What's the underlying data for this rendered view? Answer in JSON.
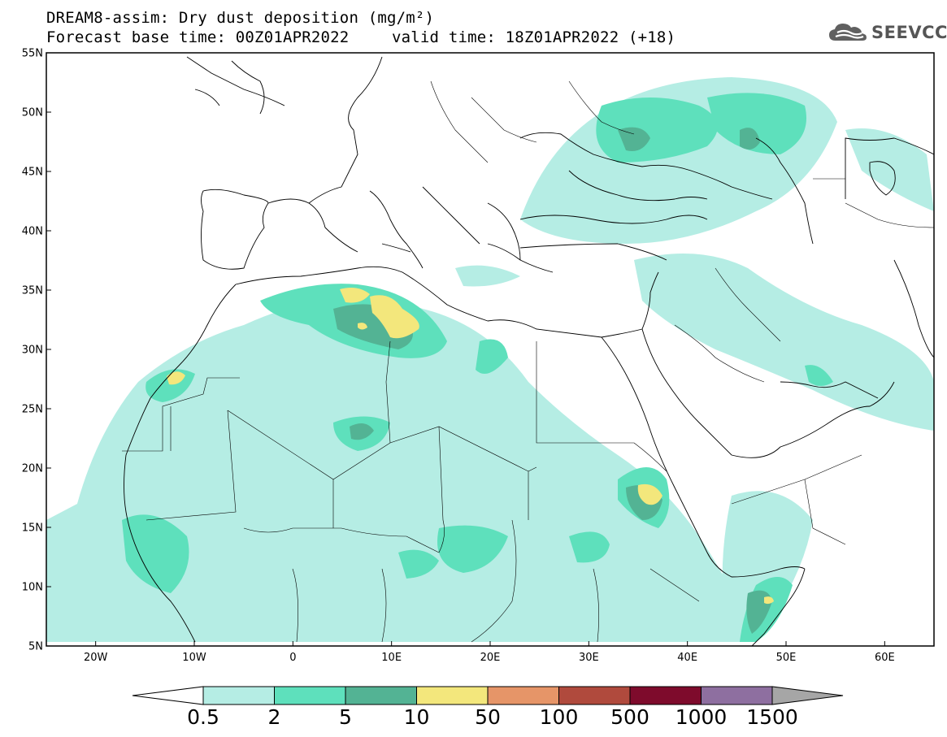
{
  "title": {
    "line1": "DREAM8-assim: Dry dust deposition (mg/m²)",
    "line2": "Forecast base time: 00Z01APR2022",
    "line3": "valid time: 18Z01APR2022 (+18)"
  },
  "logo": {
    "text": "SEEVCCC",
    "icon": "cloud-logo-icon"
  },
  "map": {
    "lon_range": [
      -25,
      65
    ],
    "lat_range": [
      5,
      55
    ],
    "lat_labels": [
      "55N",
      "50N",
      "45N",
      "40N",
      "35N",
      "30N",
      "25N",
      "20N",
      "15N",
      "10N",
      "5N"
    ],
    "lon_labels": [
      "20W",
      "10W",
      "0",
      "10E",
      "20E",
      "30E",
      "40E",
      "50E",
      "60E"
    ],
    "background": "#ffffff",
    "coast_color": "#000000"
  },
  "legend": {
    "labels": [
      "0.5",
      "2",
      "5",
      "10",
      "50",
      "100",
      "500",
      "1000",
      "1500"
    ],
    "colors": [
      "#ffffff",
      "#b5ede4",
      "#5ee0bc",
      "#53b394",
      "#f3e77c",
      "#e69568",
      "#b04a3d",
      "#7e0b2c",
      "#8e6fa0",
      "#a6a6a6"
    ]
  }
}
